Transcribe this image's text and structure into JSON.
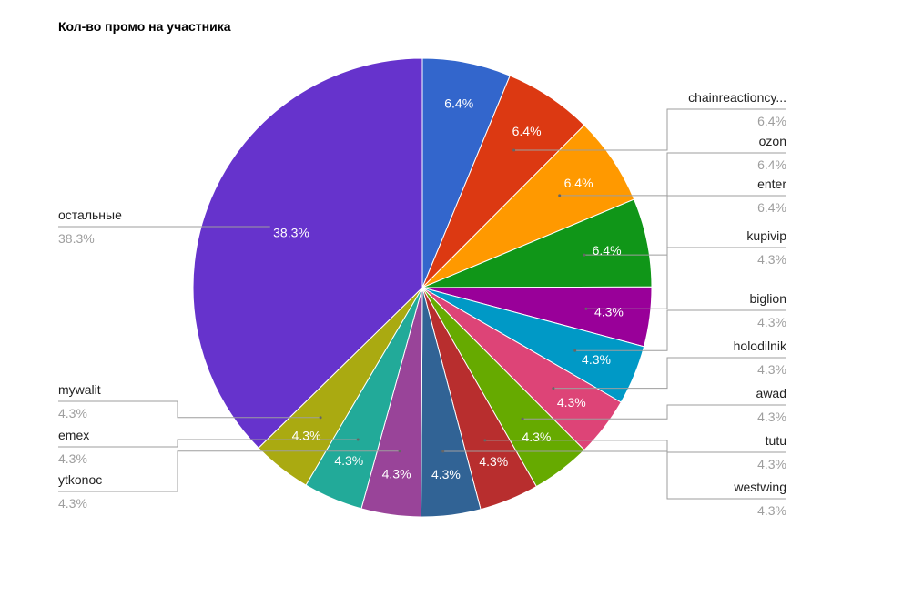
{
  "chart_data": {
    "type": "pie",
    "title": "Кол-во промо на участника",
    "legend": "labeled",
    "slices": [
      {
        "name": "",
        "value": 6.4,
        "label": "6.4%",
        "pct": "",
        "color": "#3366cc"
      },
      {
        "name": "chainreactioncy...",
        "value": 6.4,
        "label": "6.4%",
        "pct": "6.4%",
        "color": "#dc3912"
      },
      {
        "name": "ozon",
        "value": 6.4,
        "label": "6.4%",
        "pct": "6.4%",
        "color": "#ff9900"
      },
      {
        "name": "enter",
        "value": 6.4,
        "label": "6.4%",
        "pct": "6.4%",
        "color": "#109618"
      },
      {
        "name": "kupivip",
        "value": 4.3,
        "label": "4.3%",
        "pct": "4.3%",
        "color": "#990099"
      },
      {
        "name": "biglion",
        "value": 4.3,
        "label": "4.3%",
        "pct": "4.3%",
        "color": "#0099c6"
      },
      {
        "name": "holodilnik",
        "value": 4.3,
        "label": "4.3%",
        "pct": "4.3%",
        "color": "#dd4477"
      },
      {
        "name": "awad",
        "value": 4.3,
        "label": "4.3%",
        "pct": "4.3%",
        "color": "#66aa00"
      },
      {
        "name": "tutu",
        "value": 4.3,
        "label": "4.3%",
        "pct": "4.3%",
        "color": "#b82e2e"
      },
      {
        "name": "westwing",
        "value": 4.3,
        "label": "4.3%",
        "pct": "4.3%",
        "color": "#316395"
      },
      {
        "name": "ytkonoc",
        "value": 4.3,
        "label": "4.3%",
        "pct": "4.3%",
        "color": "#994499"
      },
      {
        "name": "emex",
        "value": 4.3,
        "label": "4.3%",
        "pct": "4.3%",
        "color": "#22aa99"
      },
      {
        "name": "mywalit",
        "value": 4.3,
        "label": "4.3%",
        "pct": "4.3%",
        "color": "#aaaa11"
      },
      {
        "name": "остальные",
        "value": 38.3,
        "label": "38.3%",
        "pct": "38.3%",
        "color": "#6633cc"
      }
    ]
  }
}
